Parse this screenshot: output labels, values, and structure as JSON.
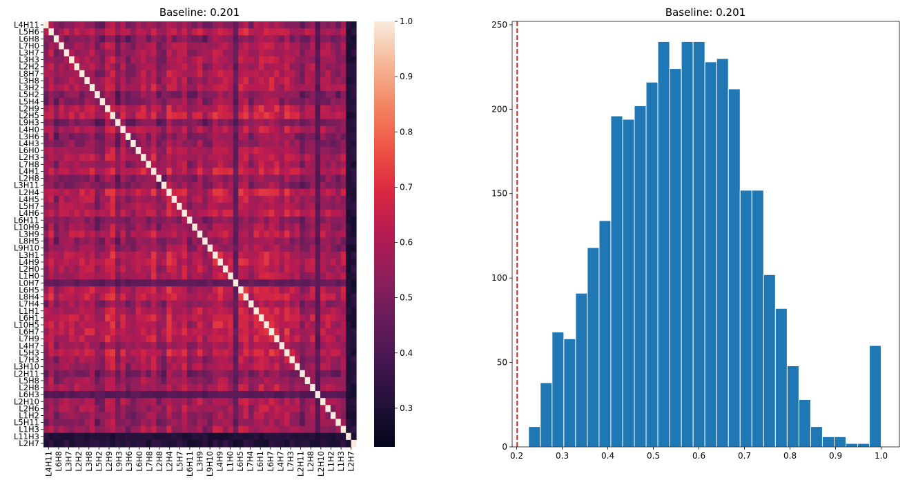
{
  "chart_data": [
    {
      "type": "heatmap",
      "title": "Baseline: 0.201",
      "labels": [
        "L4H11",
        "L5H6",
        "L6H8",
        "L7H0",
        "L3H7",
        "L3H3",
        "L2H2",
        "L8H7",
        "L3H8",
        "L3H2",
        "L5H2",
        "L5H4",
        "L2H9",
        "L2H5",
        "L9H3",
        "L4H0",
        "L3H6",
        "L4H3",
        "L6H0",
        "L2H3",
        "L7H8",
        "L4H1",
        "L2H8",
        "L3H11",
        "L2H4",
        "L4H5",
        "L5H7",
        "L4H6",
        "L6H11",
        "L10H9",
        "L3H9",
        "L8H5",
        "L9H10",
        "L3H1",
        "L4H9",
        "L2H0",
        "L1H0",
        "L0H7",
        "L6H5",
        "L8H4",
        "L7H4",
        "L1H1",
        "L6H1",
        "L10H5",
        "L6H7",
        "L7H9",
        "L4H7",
        "L5H3",
        "L7H3",
        "L3H10",
        "L2H11",
        "L5H8",
        "L2H8",
        "L6H3",
        "L2H10",
        "L2H6",
        "L1H2",
        "L5H11",
        "L1H3",
        "L11H3",
        "L2H7"
      ],
      "x_tick_labels": [
        "L4H11",
        "L6H8",
        "L3H7",
        "L2H2",
        "L3H8",
        "L5H2",
        "L2H9",
        "L9H3",
        "L3H6",
        "L6H0",
        "L7H8",
        "L2H8",
        "L2H4",
        "L5H7",
        "L6H11",
        "L3H9",
        "L9H10",
        "L4H9",
        "L1H0",
        "L6H5",
        "L7H4",
        "L6H1",
        "L6H7",
        "L4H7",
        "L7H3",
        "L2H11",
        "L2H8",
        "L2H10",
        "L1H2",
        "L1H3",
        "L2H7"
      ],
      "colorbar": {
        "range": [
          0.23,
          1.0
        ],
        "ticks": [
          "0.3",
          "0.4",
          "0.5",
          "0.6",
          "0.7",
          "0.8",
          "0.9",
          "1.0"
        ],
        "colormap": "rocket"
      }
    },
    {
      "type": "histogram",
      "title": "Baseline: 0.201",
      "bin_start": 0.226,
      "bin_width": 0.0258,
      "counts": [
        12,
        38,
        68,
        64,
        91,
        118,
        134,
        196,
        194,
        202,
        216,
        240,
        224,
        240,
        240,
        228,
        230,
        212,
        152,
        152,
        102,
        82,
        48,
        28,
        12,
        6,
        6,
        2,
        2,
        60
      ],
      "bar_color": "#1f77b4",
      "xlim": [
        0.19,
        1.04
      ],
      "ylim": [
        0,
        252
      ],
      "x_ticks": [
        "0.2",
        "0.3",
        "0.4",
        "0.5",
        "0.6",
        "0.7",
        "0.8",
        "0.9",
        "1.0"
      ],
      "y_ticks": [
        "0",
        "50",
        "100",
        "150",
        "200",
        "250"
      ],
      "baseline": 0.201,
      "baseline_color": "#d62728"
    }
  ]
}
